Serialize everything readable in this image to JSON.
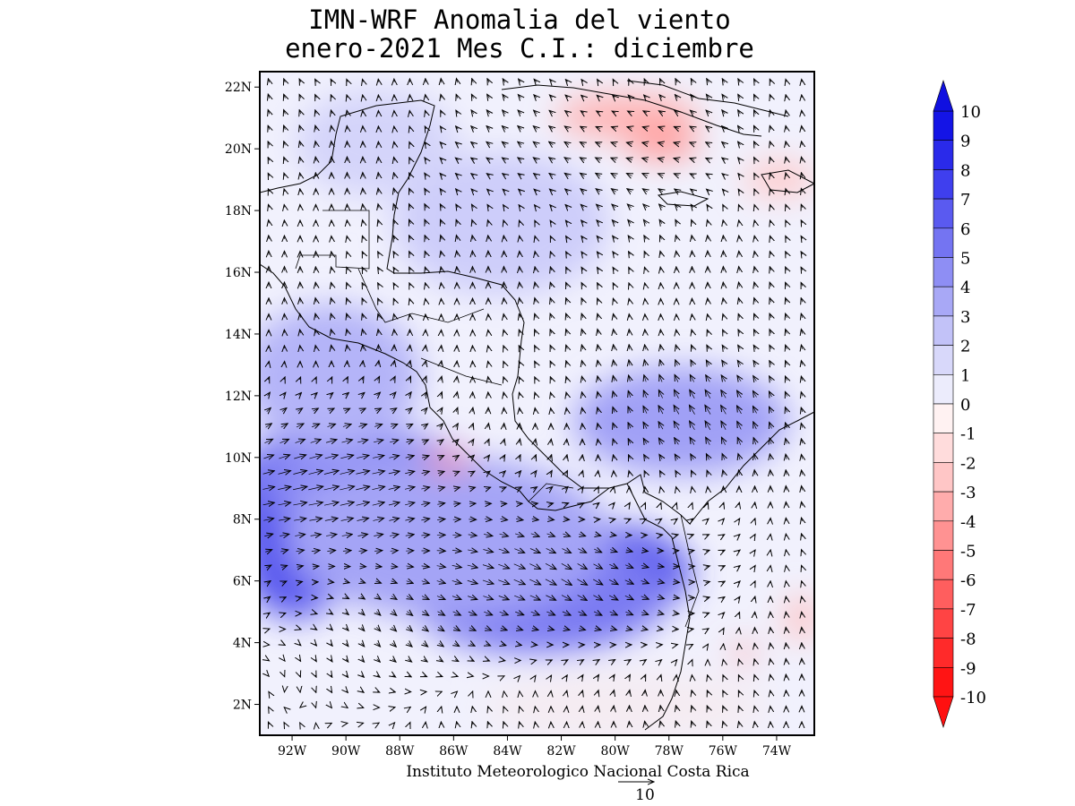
{
  "title": {
    "line1": "IMN-WRF Anomalia del viento",
    "line2": "enero-2021 Mes C.I.: diciembre"
  },
  "footer": "Instituto Meteorologico Nacional Costa Rica",
  "reference_vector": {
    "value": "10",
    "magnitude": 10
  },
  "axes": {
    "lat_ticks": [
      "22N",
      "20N",
      "18N",
      "16N",
      "14N",
      "12N",
      "10N",
      "8N",
      "6N",
      "4N",
      "2N"
    ],
    "lat_values": [
      22,
      20,
      18,
      16,
      14,
      12,
      10,
      8,
      6,
      4,
      2
    ],
    "lon_ticks": [
      "92W",
      "90W",
      "88W",
      "86W",
      "84W",
      "82W",
      "80W",
      "78W",
      "76W",
      "74W"
    ],
    "lon_values": [
      -92,
      -90,
      -88,
      -86,
      -84,
      -82,
      -80,
      -78,
      -76,
      -74
    ],
    "lon_range": [
      -93.2,
      -72.6
    ],
    "lat_range": [
      1.0,
      22.5
    ]
  },
  "colorbar": {
    "labels": [
      "10",
      "9",
      "8",
      "7",
      "6",
      "5",
      "4",
      "3",
      "2",
      "1",
      "0",
      "-1",
      "-2",
      "-3",
      "-4",
      "-5",
      "-6",
      "-7",
      "-8",
      "-9",
      "-10"
    ],
    "colors": [
      "#1414e6",
      "#2a2aea",
      "#3f3fee",
      "#5a5af0",
      "#7474f2",
      "#8e8ef4",
      "#a8a8f6",
      "#c2c2f8",
      "#d8d8fa",
      "#ececfc",
      "#fff2f2",
      "#ffdcdc",
      "#ffc6c6",
      "#ffacac",
      "#ff9292",
      "#ff7878",
      "#ff5e5e",
      "#ff4444",
      "#ff2a2a",
      "#ff1414"
    ],
    "max_color": "#1010e0",
    "min_color": "#ff1010"
  }
}
